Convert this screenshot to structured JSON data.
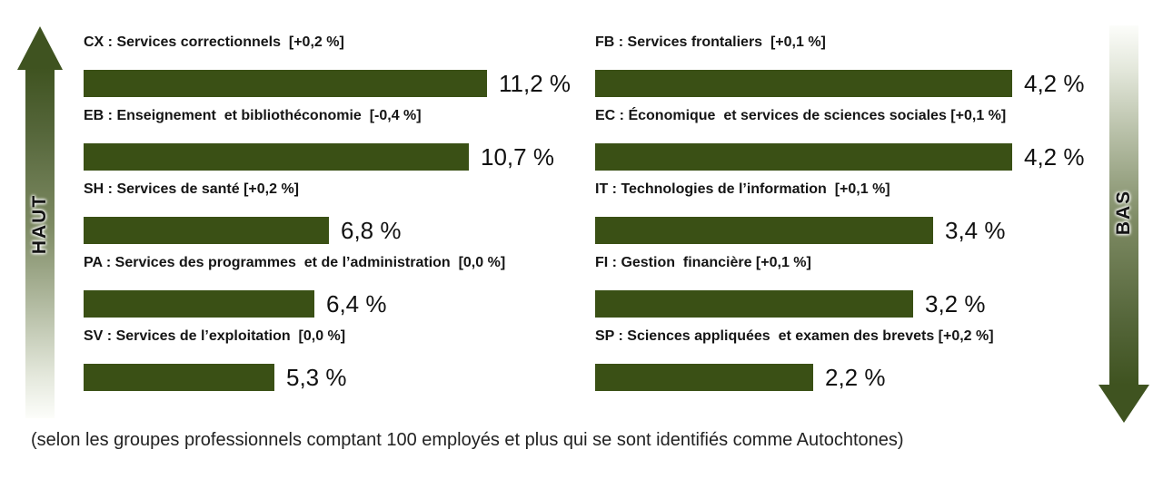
{
  "chart_data": {
    "type": "bar",
    "orientation": "horizontal",
    "value_unit": "%",
    "bar_color": "#3a5015",
    "arrow_dark_color": "#3f5320",
    "left_arrow_label": "HAUT",
    "right_arrow_label": "BAS",
    "legend_position": "none",
    "grid": false,
    "columns": [
      {
        "side": "left",
        "items": [
          {
            "code": "CX",
            "label": "CX : Services correctionnels  [+0,2 %]",
            "value": 11.2,
            "value_label": "11,2 %"
          },
          {
            "code": "EB",
            "label": "EB : Enseignement  et bibliothéconomie  [-0,4 %]",
            "value": 10.7,
            "value_label": "10,7 %"
          },
          {
            "code": "SH",
            "label": "SH : Services de santé [+0,2 %]",
            "value": 6.8,
            "value_label": "6,8 %"
          },
          {
            "code": "PA",
            "label": "PA : Services des programmes  et de l’administration  [0,0 %]",
            "value": 6.4,
            "value_label": "6,4 %"
          },
          {
            "code": "SV",
            "label": "SV : Services de l’exploitation  [0,0 %]",
            "value": 5.3,
            "value_label": "5,3 %"
          }
        ]
      },
      {
        "side": "right",
        "items": [
          {
            "code": "FB",
            "label": "FB : Services frontaliers  [+0,1 %]",
            "value": 4.2,
            "value_label": "4,2 %"
          },
          {
            "code": "EC",
            "label": "EC : Économique  et services de sciences sociales [+0,1 %]",
            "value": 4.2,
            "value_label": "4,2 %"
          },
          {
            "code": "IT",
            "label": "IT : Technologies de l’information  [+0,1 %]",
            "value": 3.4,
            "value_label": "3,4 %"
          },
          {
            "code": "FI",
            "label": "FI : Gestion  financière [+0,1 %]",
            "value": 3.2,
            "value_label": "3,2 %"
          },
          {
            "code": "SP",
            "label": "SP : Sciences appliquées  et examen des brevets [+0,2 %]",
            "value": 2.2,
            "value_label": "2,2 %"
          }
        ]
      }
    ],
    "footnote": "(selon les groupes professionnels comptant 100 employés et plus qui se sont identifiés comme Autochtones)"
  }
}
